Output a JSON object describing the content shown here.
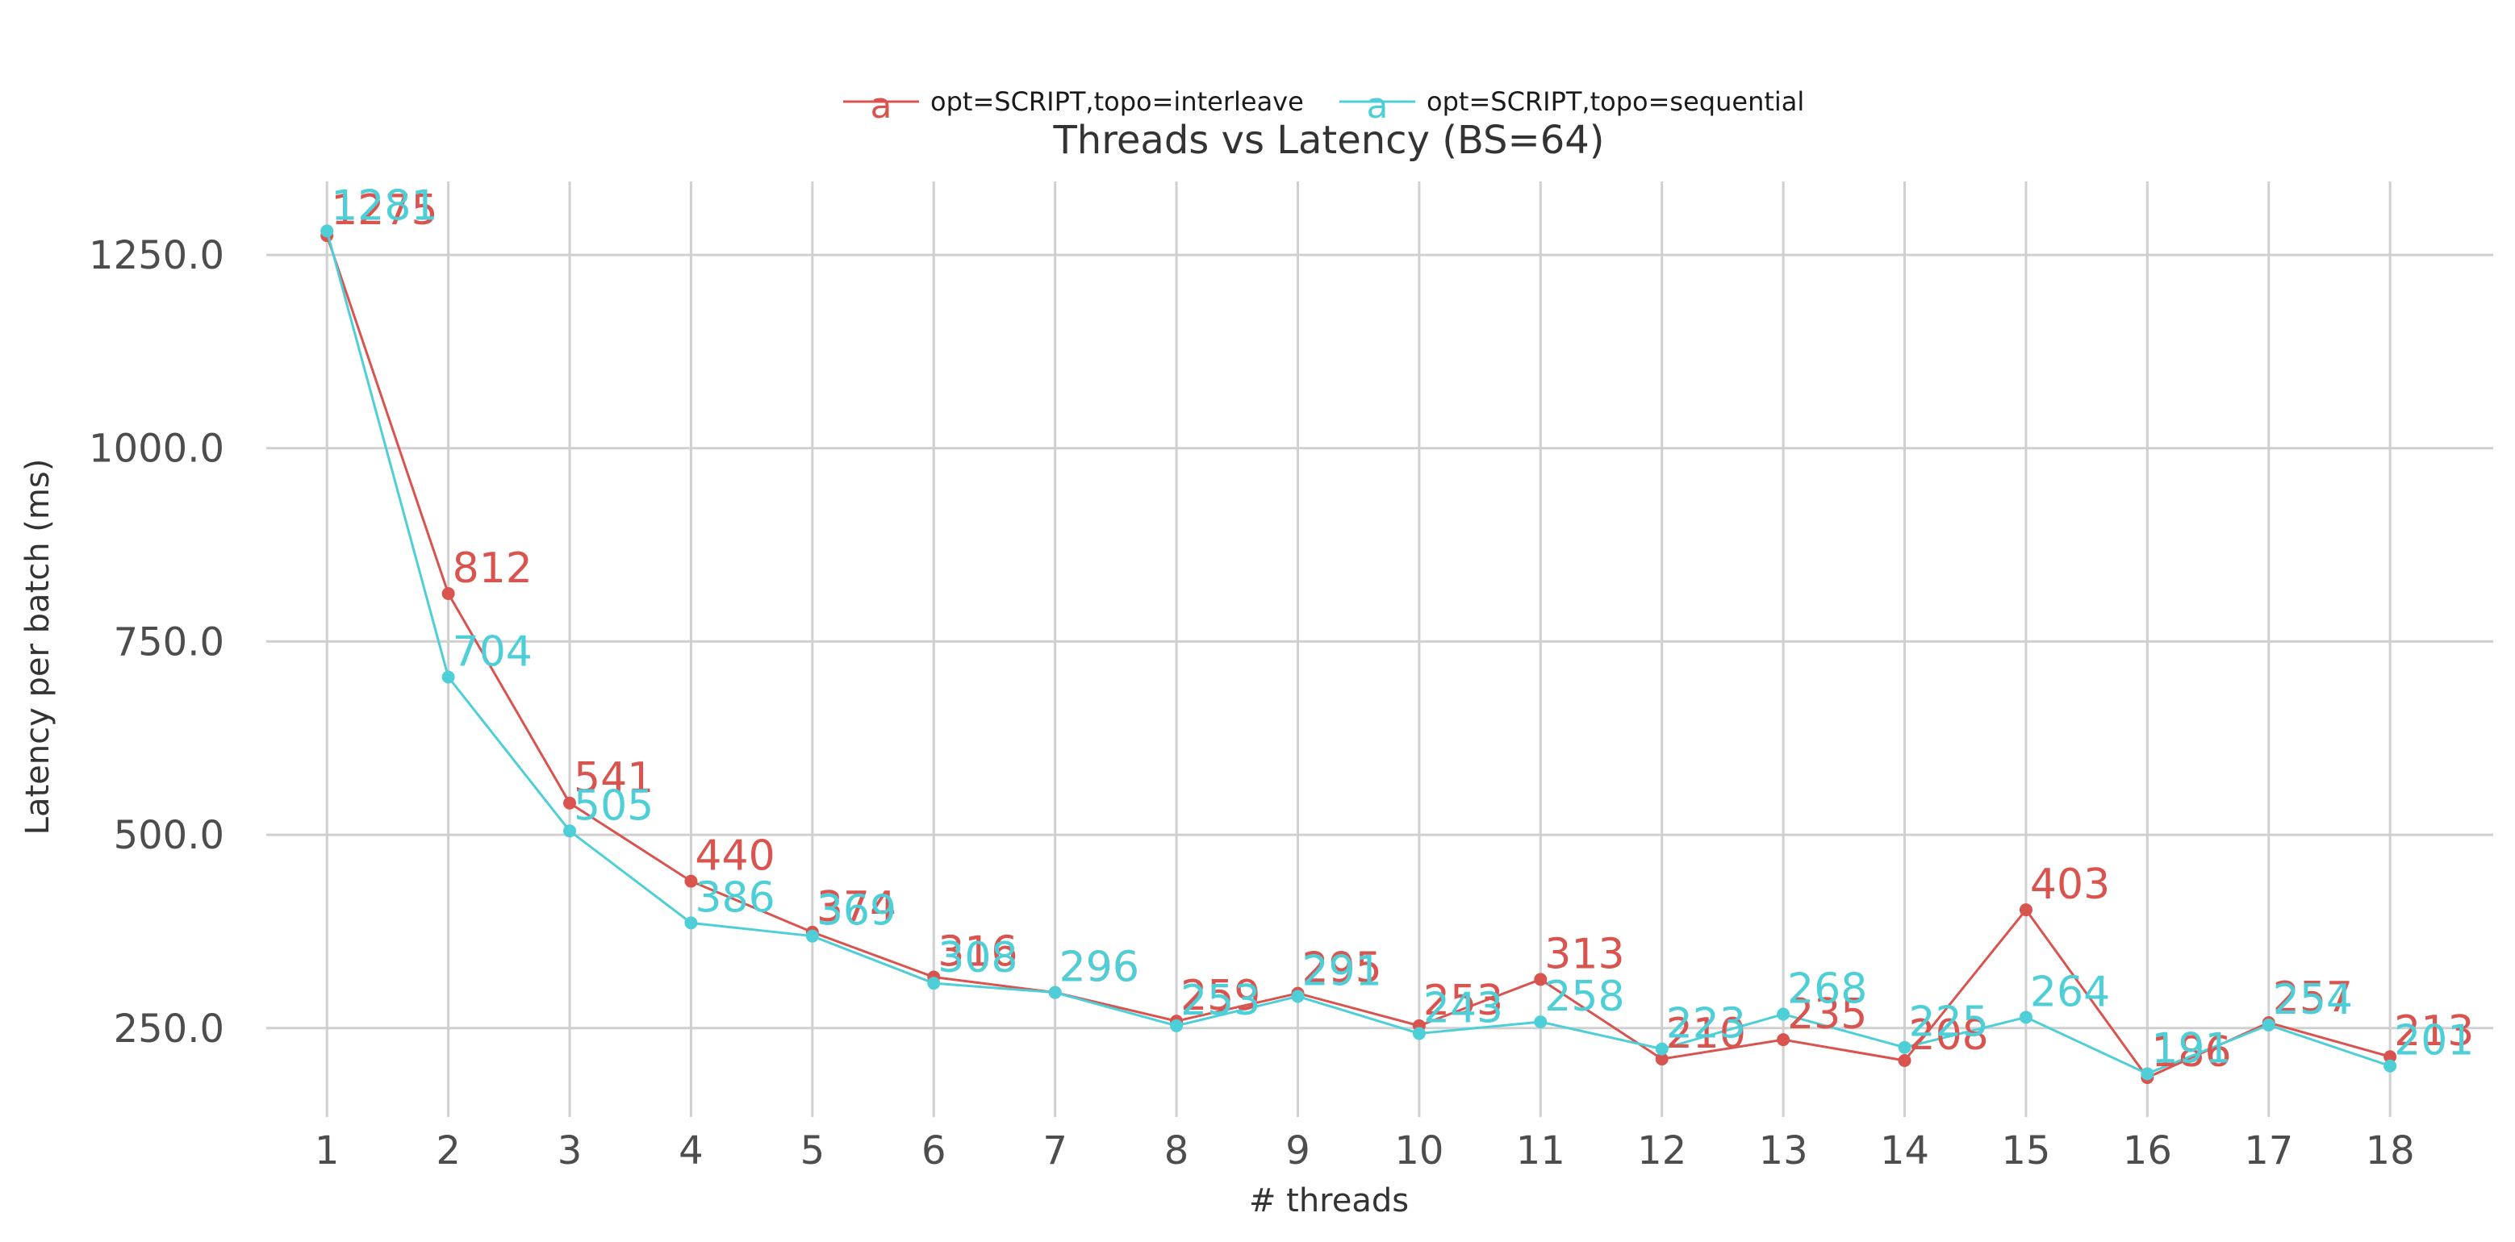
{
  "chart_data": {
    "type": "line",
    "title": "Threads vs Latency (BS=64)",
    "xlabel": "# threads",
    "ylabel": "Latency per batch (ms)",
    "x": [
      1,
      2,
      3,
      4,
      5,
      6,
      7,
      8,
      9,
      10,
      11,
      12,
      13,
      14,
      15,
      16,
      17,
      18
    ],
    "x_ticks": [
      "1",
      "2",
      "3",
      "4",
      "5",
      "6",
      "7",
      "8",
      "9",
      "10",
      "11",
      "12",
      "13",
      "14",
      "15",
      "16",
      "17",
      "18"
    ],
    "y_ticks": [
      250,
      500,
      750,
      1000,
      1250
    ],
    "y_tick_labels": [
      "250.0",
      "500.0",
      "750.0",
      "1000.0",
      "1250.0"
    ],
    "xlim": [
      0.5,
      18.85
    ],
    "ylim": [
      135,
      1345
    ],
    "grid": true,
    "legend_position": "top-center",
    "legend_glyph": "a",
    "series": [
      {
        "name": "opt=SCRIPT,topo=interleave",
        "color": "#d9534f",
        "values": [
          1275,
          812,
          541,
          440,
          374,
          316,
          296,
          259,
          295,
          253,
          313,
          210,
          235,
          208,
          403,
          186,
          257,
          213
        ]
      },
      {
        "name": "opt=SCRIPT,topo=sequential",
        "color": "#4ecfd8",
        "values": [
          1281,
          704,
          505,
          386,
          369,
          308,
          296,
          253,
          291,
          243,
          258,
          223,
          268,
          225,
          264,
          191,
          254,
          201
        ]
      }
    ]
  }
}
